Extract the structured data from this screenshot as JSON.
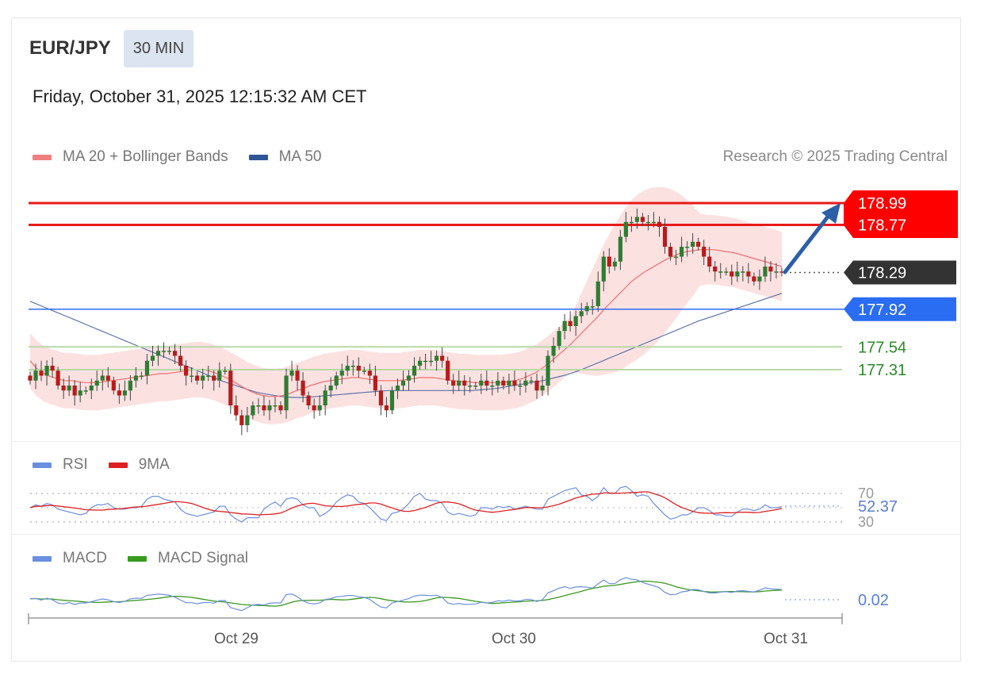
{
  "header": {
    "symbol": "EUR/JPY",
    "interval": "30 MIN",
    "datetime": "Friday, October 31, 2025 12:15:32 AM CET",
    "credit": "Research © 2025 Trading Central"
  },
  "legends": {
    "main": [
      {
        "label": "MA 20 + Bollinger Bands",
        "color": "#f08080"
      },
      {
        "label": "MA 50",
        "color": "#2f5597"
      }
    ],
    "rsi": [
      {
        "label": "RSI",
        "color": "#6b8fe0"
      },
      {
        "label": "9MA",
        "color": "#e02020"
      }
    ],
    "macd": [
      {
        "label": "MACD",
        "color": "#6b8fe0"
      },
      {
        "label": "MACD Signal",
        "color": "#3a9a20"
      }
    ]
  },
  "chart_data": {
    "type": "candlestick",
    "ylim": [
      176.5,
      179.4
    ],
    "x_ticks": [
      "Oct 29",
      "Oct 30",
      "Oct 31"
    ],
    "levels": [
      {
        "value": 178.99,
        "label": "178.99",
        "color": "#e81a1a",
        "kind": "resistance"
      },
      {
        "value": 178.77,
        "label": "178.77",
        "color": "#e81a1a",
        "kind": "resistance"
      },
      {
        "value": 178.29,
        "label": "178.29",
        "color": "#333333",
        "kind": "last-price"
      },
      {
        "value": 177.92,
        "label": "177.92",
        "color": "#2a6df2",
        "kind": "pivot"
      },
      {
        "value": 177.54,
        "label": "177.54",
        "color": "#2a8a2a",
        "kind": "support"
      },
      {
        "value": 177.31,
        "label": "177.31",
        "color": "#2a8a2a",
        "kind": "support"
      }
    ],
    "candles_close": [
      177.2,
      177.3,
      177.25,
      177.35,
      177.3,
      177.15,
      177.1,
      177.15,
      177.05,
      177.1,
      177.1,
      177.15,
      177.2,
      177.25,
      177.2,
      177.1,
      177.05,
      177.1,
      177.2,
      177.25,
      177.25,
      177.4,
      177.45,
      177.5,
      177.5,
      177.5,
      177.45,
      177.35,
      177.25,
      177.25,
      177.2,
      177.25,
      177.25,
      177.2,
      177.3,
      177.3,
      176.95,
      176.85,
      176.75,
      176.85,
      176.95,
      176.95,
      176.9,
      176.95,
      176.95,
      176.9,
      177.25,
      177.3,
      177.2,
      177.05,
      176.95,
      176.9,
      176.95,
      177.1,
      177.15,
      177.25,
      177.3,
      177.35,
      177.35,
      177.3,
      177.3,
      177.25,
      177.1,
      176.95,
      176.9,
      177.1,
      177.15,
      177.2,
      177.25,
      177.35,
      177.4,
      177.4,
      177.4,
      177.45,
      177.4,
      177.2,
      177.15,
      177.2,
      177.15,
      177.15,
      177.15,
      177.2,
      177.15,
      177.15,
      177.2,
      177.15,
      177.2,
      177.15,
      177.15,
      177.2,
      177.2,
      177.1,
      177.15,
      177.45,
      177.55,
      177.7,
      177.8,
      177.75,
      177.85,
      177.9,
      177.95,
      177.95,
      178.2,
      178.45,
      178.35,
      178.4,
      178.65,
      178.8,
      178.8,
      178.85,
      178.8,
      178.8,
      178.8,
      178.75,
      178.55,
      178.45,
      178.45,
      178.55,
      178.55,
      178.6,
      178.55,
      178.45,
      178.35,
      178.3,
      178.3,
      178.3,
      178.25,
      178.3,
      178.3,
      178.25,
      178.2,
      178.25,
      178.35,
      178.3,
      178.3,
      178.29
    ],
    "ma20": [
      177.4,
      177.32,
      177.27,
      177.24,
      177.22,
      177.2,
      177.2,
      177.19,
      177.18,
      177.18,
      177.18,
      177.19,
      177.2,
      177.21,
      177.22,
      177.23,
      177.24,
      177.25,
      177.26,
      177.27,
      177.27,
      177.28,
      177.29,
      177.3,
      177.31,
      177.31,
      177.3,
      177.28,
      177.25,
      177.22,
      177.18,
      177.14,
      177.1,
      177.07,
      177.05,
      177.04,
      177.04,
      177.05,
      177.07,
      177.1,
      177.12,
      177.15,
      177.17,
      177.19,
      177.2,
      177.21,
      177.22,
      177.23,
      177.23,
      177.22,
      177.21,
      177.2,
      177.2,
      177.2,
      177.2,
      177.21,
      177.22,
      177.23,
      177.23,
      177.23,
      177.22,
      177.21,
      177.2,
      177.19,
      177.19,
      177.18,
      177.18,
      177.18,
      177.18,
      177.18,
      177.19,
      177.2,
      177.22,
      177.25,
      177.28,
      177.33,
      177.38,
      177.44,
      177.5,
      177.56,
      177.63,
      177.7,
      177.77,
      177.84,
      177.92,
      177.99,
      178.06,
      178.13,
      178.2,
      178.25,
      178.3,
      178.34,
      178.38,
      178.42,
      178.45,
      178.48,
      178.5,
      178.51,
      178.52,
      178.52,
      178.52,
      178.51,
      178.5,
      178.49,
      178.47,
      178.45,
      178.43,
      178.41,
      178.39,
      178.37,
      178.35
    ],
    "ma50": [
      178.0,
      177.95,
      177.9,
      177.85,
      177.8,
      177.75,
      177.7,
      177.65,
      177.6,
      177.55,
      177.5,
      177.45,
      177.4,
      177.35,
      177.3,
      177.25,
      177.2,
      177.16,
      177.12,
      177.08,
      177.06,
      177.04,
      177.03,
      177.03,
      177.04,
      177.05,
      177.06,
      177.07,
      177.08,
      177.09,
      177.1,
      177.1,
      177.1,
      177.1,
      177.1,
      177.1,
      177.1,
      177.1,
      177.11,
      177.12,
      177.14,
      177.16,
      177.18,
      177.2,
      177.23,
      177.26,
      177.3,
      177.35,
      177.4,
      177.45,
      177.5,
      177.55,
      177.6,
      177.65,
      177.7,
      177.75,
      177.8,
      177.84,
      177.88,
      177.92,
      177.96,
      178.0,
      178.04,
      178.08
    ],
    "rsi_levels": [
      70,
      30
    ],
    "rsi_last": "52.37",
    "macd_last": "0.02"
  }
}
